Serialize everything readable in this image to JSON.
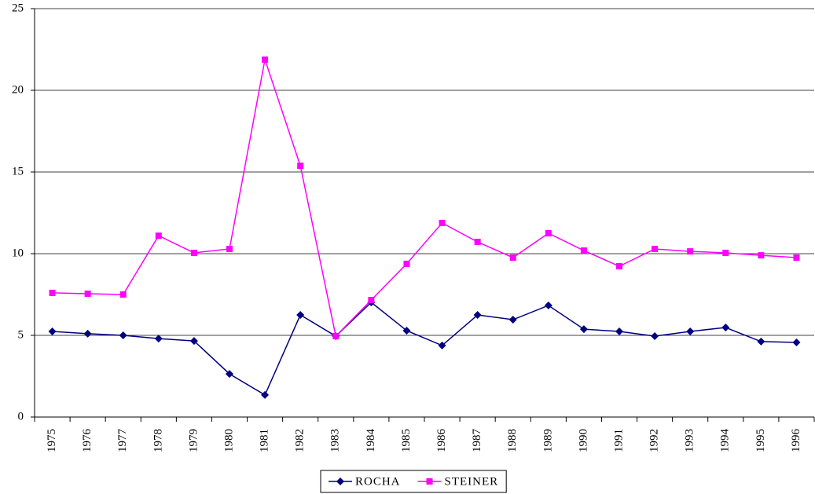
{
  "chart_data": {
    "type": "line",
    "categories": [
      "1975",
      "1976",
      "1977",
      "1978",
      "1979",
      "1980",
      "1981",
      "1982",
      "1983",
      "1984",
      "1985",
      "1986",
      "1987",
      "1988",
      "1989",
      "1990",
      "1991",
      "1992",
      "1993",
      "1994",
      "1995",
      "1996"
    ],
    "series": [
      {
        "name": "ROCHA",
        "color": "#000080",
        "marker": "diamond",
        "values": [
          5.24,
          5.1,
          5.0,
          4.8,
          4.66,
          2.64,
          1.35,
          6.25,
          4.95,
          7.02,
          5.29,
          4.38,
          6.25,
          5.96,
          6.83,
          5.38,
          5.24,
          4.95,
          5.24,
          5.48,
          4.62,
          4.57
        ]
      },
      {
        "name": "STEINER",
        "color": "#ff00ff",
        "marker": "square",
        "values": [
          7.6,
          7.55,
          7.5,
          11.1,
          10.05,
          10.29,
          21.88,
          15.38,
          4.95,
          7.16,
          9.38,
          11.88,
          10.72,
          9.76,
          11.25,
          10.19,
          9.23,
          10.29,
          10.14,
          10.05,
          9.9,
          9.76
        ]
      }
    ],
    "ylim": [
      0,
      25
    ],
    "yticks": [
      0,
      5,
      10,
      15,
      20,
      25
    ],
    "grid": true,
    "legend": "bottom"
  }
}
